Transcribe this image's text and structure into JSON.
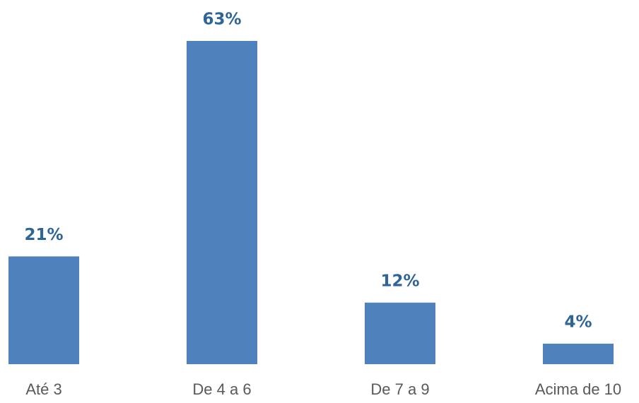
{
  "chart_data": {
    "type": "bar",
    "categories": [
      "Até 3",
      "De 4 a 6",
      "De 7 a 9",
      "Acima de 10"
    ],
    "values": [
      21,
      63,
      12,
      4
    ],
    "value_labels": [
      "21%",
      "63%",
      "12%",
      "4%"
    ],
    "color": "#4f81bd"
  }
}
